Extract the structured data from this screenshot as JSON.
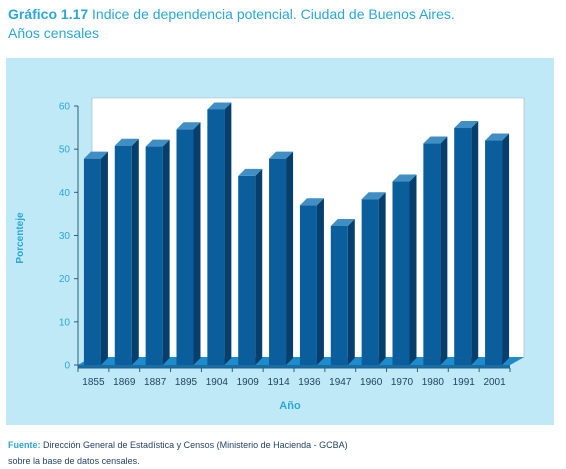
{
  "title_number": "Gráfico 1.17",
  "title_text": "Indice de dependencia potencial. Ciudad de Buenos Aires.",
  "title_line2": "Años censales",
  "source_label": "Fuente:",
  "source_text": "Dirección General de Estadística y Censos (Ministerio de Hacienda - GCBA)",
  "source_line2": "sobre la base de datos censales.",
  "chart_data": {
    "type": "bar",
    "categories": [
      "1855",
      "1869",
      "1887",
      "1895",
      "1904",
      "1909",
      "1914",
      "1936",
      "1947",
      "1960",
      "1970",
      "1980",
      "1991",
      "2001"
    ],
    "values": [
      47.8,
      50.8,
      50.6,
      54.6,
      59.2,
      43.8,
      47.8,
      37.0,
      32.2,
      38.4,
      42.5,
      51.3,
      54.9,
      52.0
    ],
    "xlabel": "Año",
    "ylabel": "Porcenteje",
    "ylim": [
      0,
      60
    ],
    "yticks": [
      "0",
      "10",
      "20",
      "30",
      "40",
      "50",
      "60"
    ],
    "grid": false,
    "bar_color": "#0a5e9c"
  }
}
